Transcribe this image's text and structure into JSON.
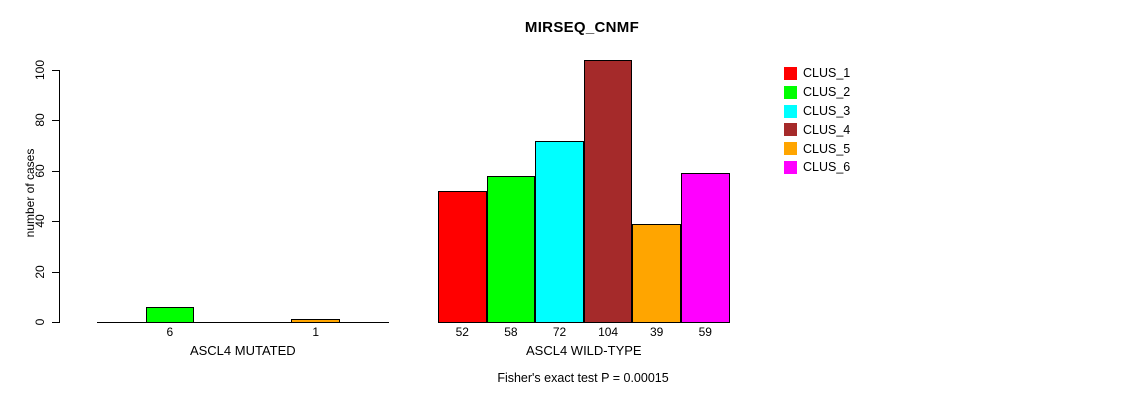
{
  "chart_data": {
    "type": "bar",
    "title": "MIRSEQ_CNMF",
    "ylabel": "number of cases",
    "xlabel": "",
    "ylim": [
      0,
      100
    ],
    "y_ticks": [
      0,
      20,
      40,
      60,
      80,
      100
    ],
    "grid": false,
    "legend_position": "right",
    "clusters": [
      "CLUS_1",
      "CLUS_2",
      "CLUS_3",
      "CLUS_4",
      "CLUS_5",
      "CLUS_6"
    ],
    "colors": [
      "#FF0000",
      "#00FF00",
      "#00FFFF",
      "#A52A2A",
      "#FFA500",
      "#FF00FF"
    ],
    "groups": [
      {
        "label": "ASCL4 MUTATED",
        "values": [
          0,
          6,
          0,
          0,
          1,
          0
        ],
        "bar_labels": [
          "",
          "6",
          "",
          "",
          "1",
          ""
        ]
      },
      {
        "label": "ASCL4 WILD-TYPE",
        "values": [
          52,
          58,
          72,
          104,
          39,
          59
        ],
        "bar_labels": [
          "52",
          "58",
          "72",
          "104",
          "39",
          "59"
        ]
      }
    ],
    "annotation": "Fisher's exact test P = 0.00015"
  }
}
